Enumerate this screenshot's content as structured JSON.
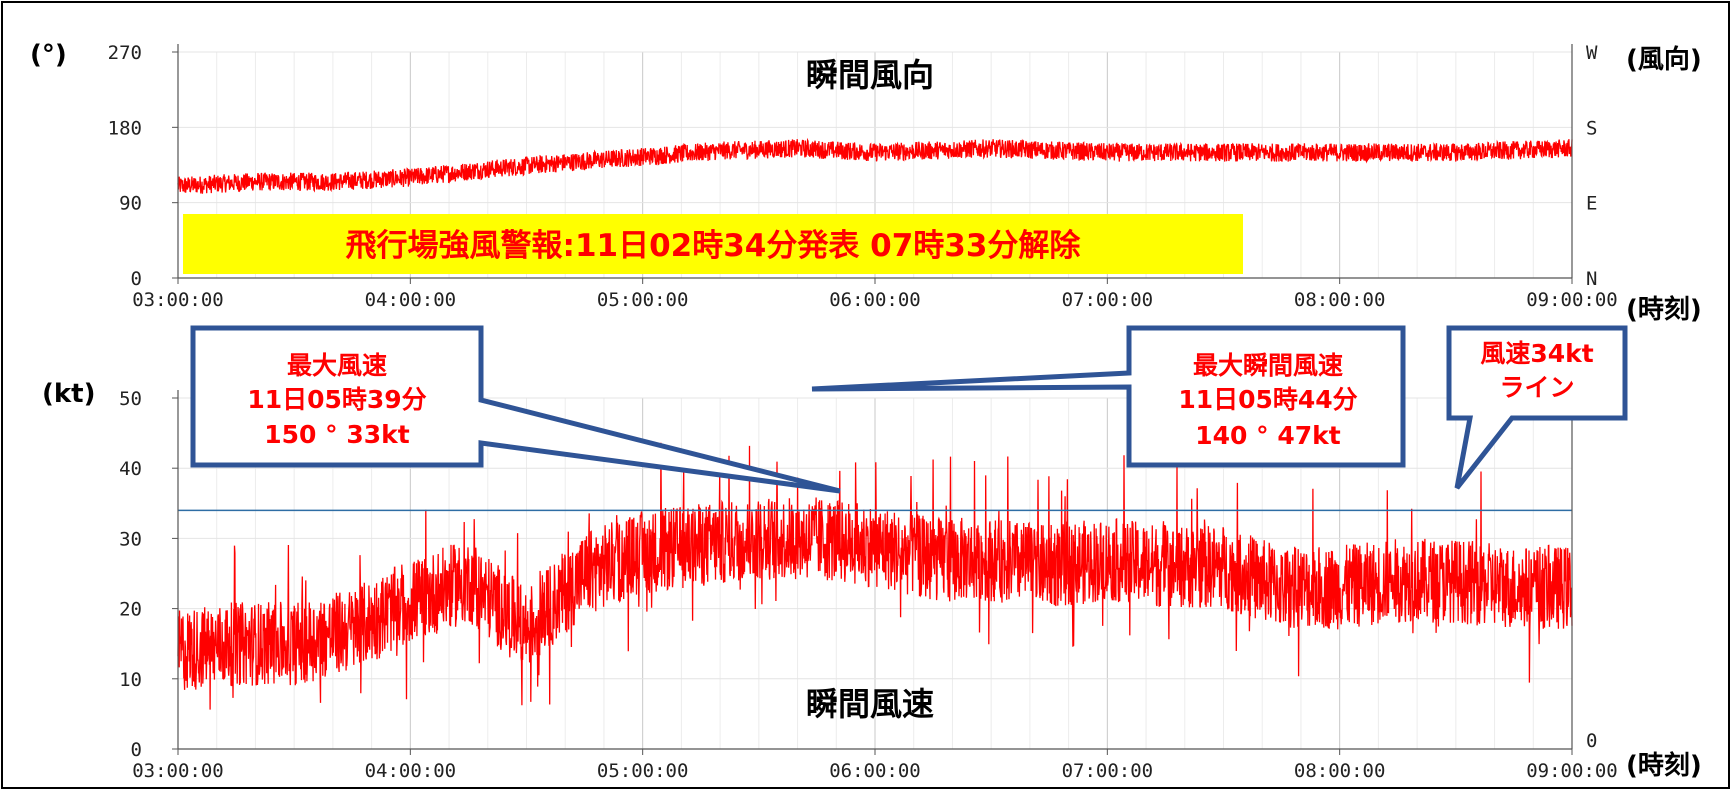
{
  "colors": {
    "series": "#ff0000",
    "threshold_line": "#2e6da4",
    "callout_border": "#2f5496",
    "banner": "#ffff00",
    "grid": "#d9d9d9"
  },
  "units": {
    "degree": "(°)",
    "wind_dir": "(風向)",
    "time_top": "(時刻)",
    "kt": "(kt)",
    "time_bottom": "(時刻)"
  },
  "banner_text": "飛行場強風警報:11日02時34分発表  07時33分解除",
  "callouts": {
    "max_wind": [
      "最大風速",
      "11日05時39分",
      "150 ° 33kt"
    ],
    "max_gust": [
      "最大瞬間風速",
      "11日05時44分",
      "140 ° 47kt"
    ],
    "line34": [
      "風速34kt",
      "ライン"
    ]
  },
  "chart_data": [
    {
      "type": "line",
      "title": "瞬間風向",
      "x_ticks": [
        "03:00:00",
        "04:00:00",
        "05:00:00",
        "06:00:00",
        "07:00:00",
        "08:00:00",
        "09:00:00"
      ],
      "xlim": [
        "03:00:00",
        "09:00:00"
      ],
      "y_ticks": [
        "0",
        "90",
        "180",
        "270"
      ],
      "ylim": [
        0,
        270
      ],
      "y2_ticks": [
        "N",
        "E",
        "S",
        "W"
      ],
      "grid": true,
      "series": [
        {
          "color": "#ff0000",
          "x": [
            "03:00:00",
            "03:20:00",
            "03:40:00",
            "04:00:00",
            "04:20:00",
            "04:40:00",
            "05:00:00",
            "05:20:00",
            "05:40:00",
            "06:00:00",
            "06:30:00",
            "07:00:00",
            "07:30:00",
            "08:00:00",
            "08:30:00",
            "09:00:00"
          ],
          "y": [
            110,
            115,
            115,
            120,
            130,
            138,
            145,
            152,
            155,
            150,
            155,
            150,
            150,
            150,
            150,
            155
          ]
        }
      ]
    },
    {
      "type": "line",
      "title": "瞬間風速",
      "x_ticks": [
        "03:00:00",
        "04:00:00",
        "05:00:00",
        "06:00:00",
        "07:00:00",
        "08:00:00",
        "09:00:00"
      ],
      "xlim": [
        "03:00:00",
        "09:00:00"
      ],
      "y_ticks": [
        "0",
        "10",
        "20",
        "30",
        "40",
        "50"
      ],
      "ylim": [
        0,
        50
      ],
      "y2_ticks": [
        "0"
      ],
      "threshold": 34,
      "grid": true,
      "series": [
        {
          "color": "#ff0000",
          "x": [
            "03:00:00",
            "03:15:00",
            "03:30:00",
            "03:45:00",
            "04:00:00",
            "04:15:00",
            "04:30:00",
            "04:45:00",
            "05:00:00",
            "05:15:00",
            "05:30:00",
            "05:45:00",
            "06:00:00",
            "06:15:00",
            "06:30:00",
            "06:45:00",
            "07:00:00",
            "07:15:00",
            "07:30:00",
            "07:45:00",
            "08:00:00",
            "08:15:00",
            "08:30:00",
            "08:45:00",
            "09:00:00"
          ],
          "y": [
            14,
            15,
            15,
            17,
            21,
            24,
            17,
            25,
            28,
            29,
            30,
            30,
            29,
            27,
            27,
            26,
            27,
            26,
            26,
            23,
            23,
            24,
            24,
            23,
            23
          ]
        }
      ]
    }
  ]
}
